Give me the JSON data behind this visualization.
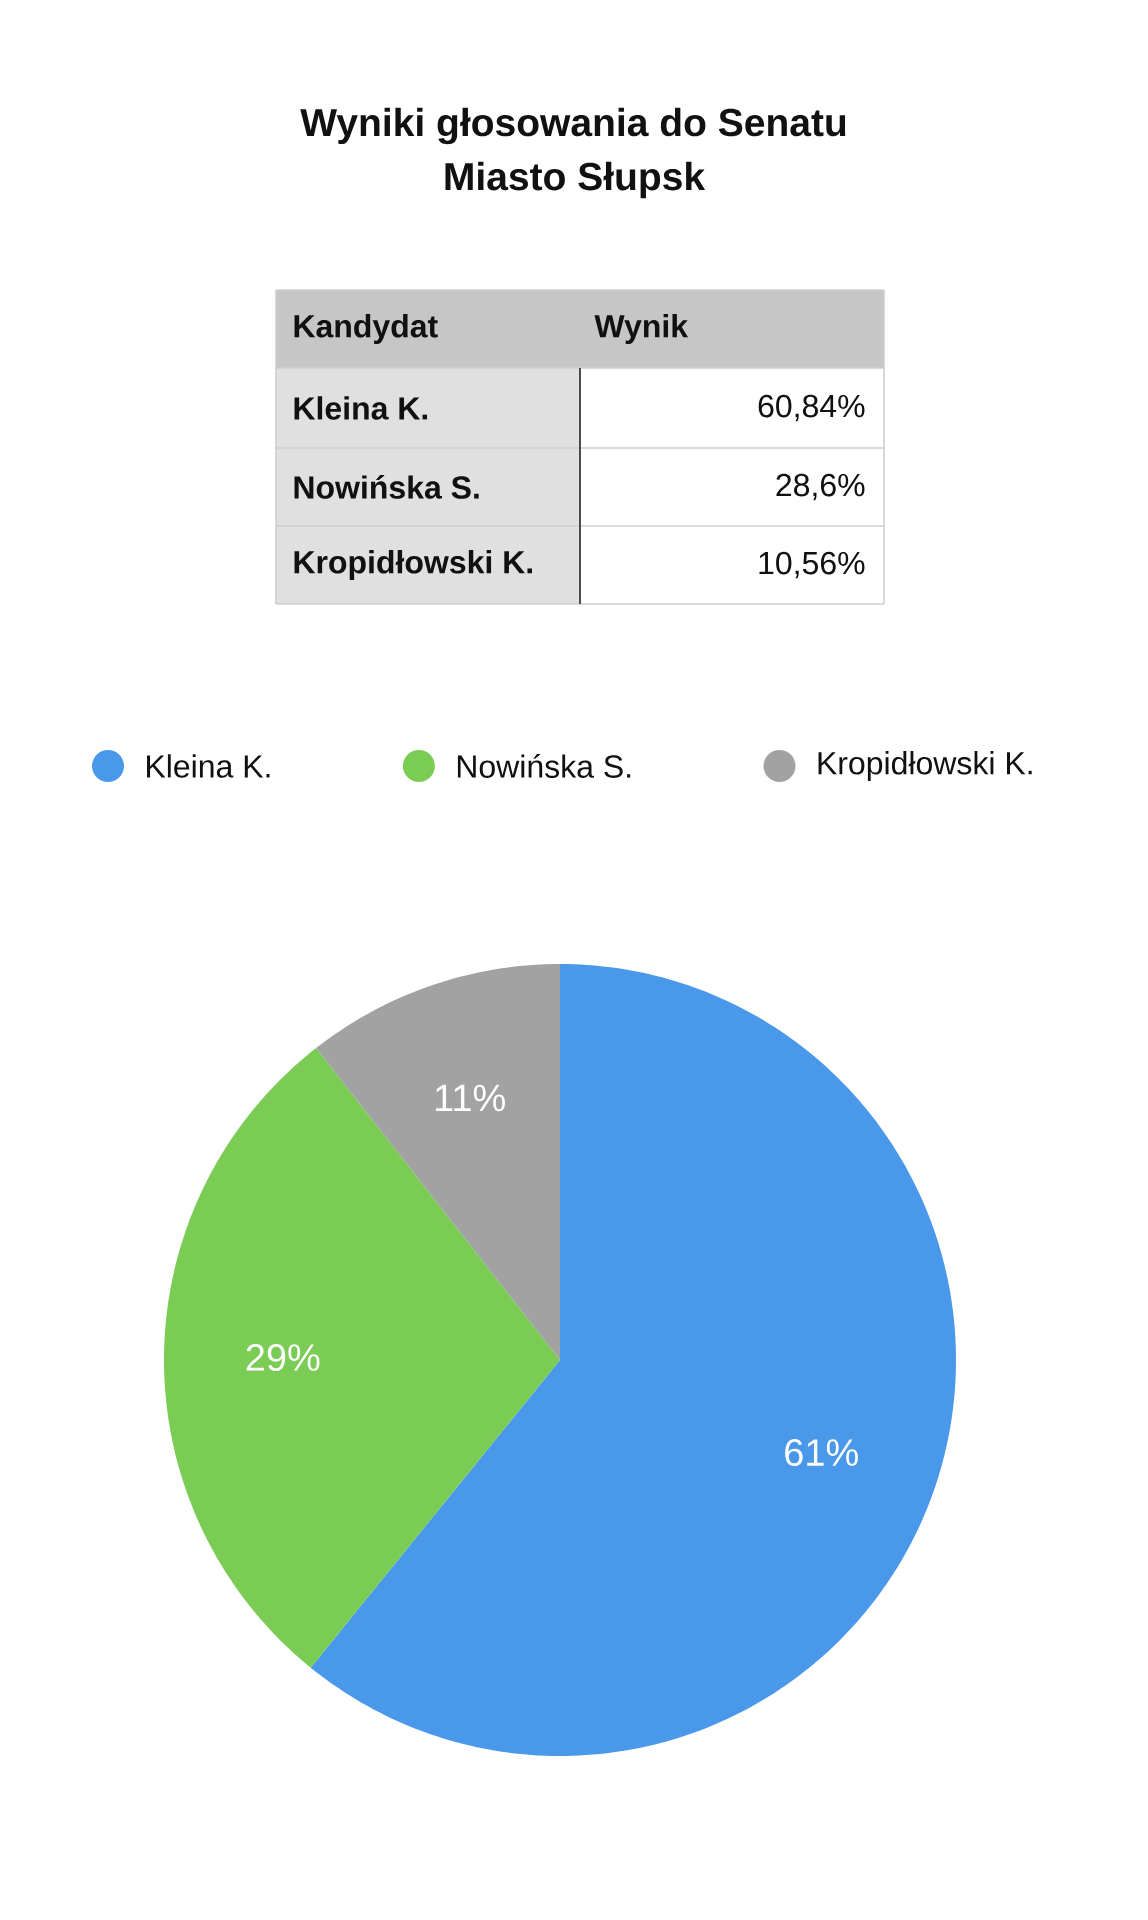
{
  "chart_data": {
    "type": "pie",
    "title": "Wyniki głosowania do Senatu",
    "subtitle": "Miasto Słupsk",
    "categories": [
      "Kleina K.",
      "Nowińska S.",
      "Kropidłowski K."
    ],
    "values": [
      60.84,
      28.6,
      10.56
    ],
    "colors": [
      "#4a98ea",
      "#7acc55",
      "#a2a2a2"
    ],
    "value_labels": [
      "61%",
      "29%",
      "11%"
    ],
    "legend": "top",
    "annotations": [
      "Kandydat",
      "Wynik",
      "60,84%",
      "28,6%",
      "10,56%"
    ]
  }
}
